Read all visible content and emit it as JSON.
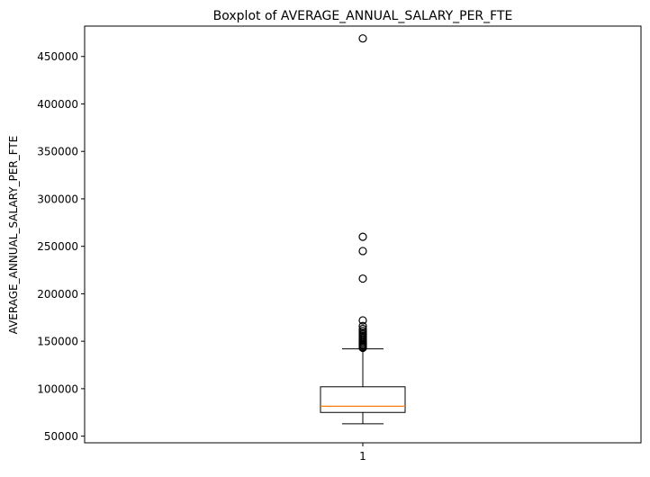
{
  "chart_data": {
    "type": "boxplot",
    "title": "Boxplot of AVERAGE_ANNUAL_SALARY_PER_FTE",
    "xlabel": "",
    "ylabel": "AVERAGE_ANNUAL_SALARY_PER_FTE",
    "categories": [
      "1"
    ],
    "ylim": [
      43000,
      482000
    ],
    "yticks": [
      50000,
      100000,
      150000,
      200000,
      250000,
      300000,
      350000,
      400000,
      450000
    ],
    "ytick_labels": [
      "50000",
      "100000",
      "150000",
      "200000",
      "250000",
      "300000",
      "350000",
      "400000",
      "450000"
    ],
    "grid": false,
    "boxes": [
      {
        "label": "1",
        "whisker_low": 63000,
        "q1": 75000,
        "median": 81500,
        "q3": 102000,
        "whisker_high": 142000,
        "outliers": [
          469000,
          260000,
          245000,
          216000,
          172000,
          166000,
          163000,
          161000,
          159000,
          157500,
          156000,
          154500,
          153000,
          151500,
          150000,
          148500,
          147000,
          146000,
          145000,
          144000,
          143000
        ]
      }
    ],
    "colors": {
      "box": "#000000",
      "median": "#ff7f0e",
      "outlier": "#000000"
    }
  }
}
